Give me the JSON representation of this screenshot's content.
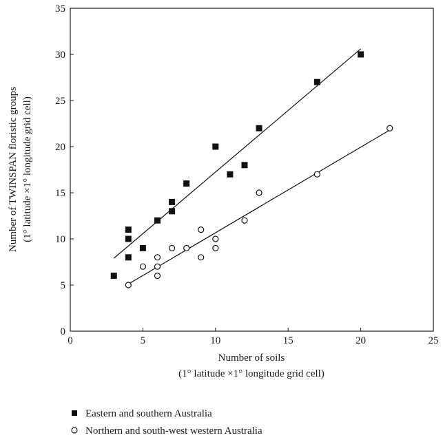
{
  "chart_data": {
    "type": "scatter",
    "xlabel": "Number of soils",
    "xlabel_sub": "(1° latitude ×1° longitude grid cell)",
    "ylabel": "Number of TWINSPAN floristic groups",
    "ylabel_sub": "(1° latitude ×1° longitude grid cell)",
    "xlim": [
      0,
      25
    ],
    "ylim": [
      0,
      35
    ],
    "xticks": [
      0,
      5,
      10,
      15,
      20,
      25
    ],
    "yticks": [
      0,
      5,
      10,
      15,
      20,
      25,
      30,
      35
    ],
    "grid": false,
    "legend_position": "bottom-left",
    "series": [
      {
        "name": "Eastern and southern Australia",
        "marker": "filled-square",
        "color": "#111111",
        "x": [
          3,
          4,
          4,
          4,
          5,
          6,
          7,
          7,
          8,
          10,
          11,
          12,
          13,
          17,
          20
        ],
        "y": [
          6,
          8,
          10,
          11,
          9,
          12,
          13,
          14,
          16,
          20,
          17,
          18,
          22,
          27,
          30
        ],
        "fit": {
          "x": [
            3,
            20
          ],
          "y": [
            7.9,
            30.6
          ]
        }
      },
      {
        "name": "Northern and south-west western Australia",
        "marker": "open-circle",
        "color": "#111111",
        "x": [
          4,
          5,
          6,
          6,
          6,
          7,
          8,
          9,
          9,
          10,
          10,
          12,
          13,
          17,
          22
        ],
        "y": [
          5,
          7,
          6,
          7,
          8,
          9,
          9,
          8,
          11,
          9,
          10,
          12,
          15,
          17,
          22
        ],
        "fit": {
          "x": [
            4,
            22
          ],
          "y": [
            5.1,
            21.8
          ]
        }
      }
    ]
  }
}
